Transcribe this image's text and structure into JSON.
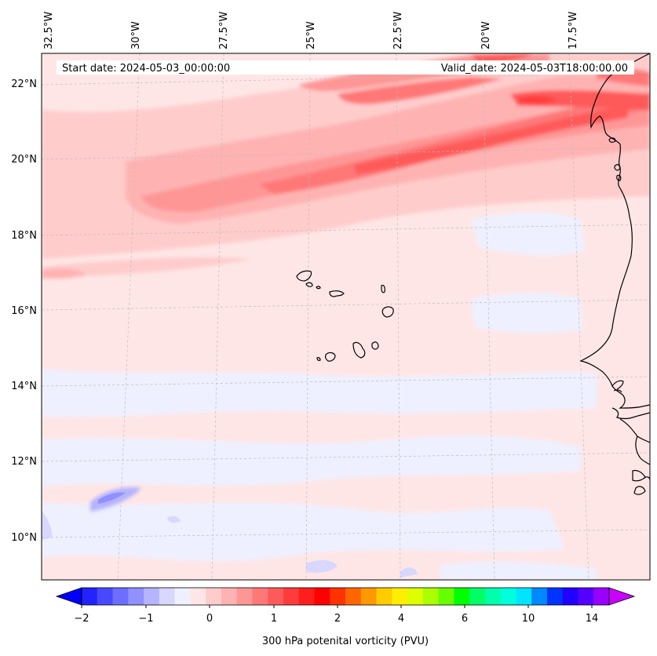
{
  "map": {
    "region": "Eastern North Atlantic - Cape Verde and West African coast",
    "start_label": "Start date: 2024-05-03_00:00:00",
    "valid_label": "Valid_date: 2024-05-03T18:00:00.00",
    "longitude_labels": [
      "32.5°W",
      "30°W",
      "27.5°W",
      "25°W",
      "22.5°W",
      "20°W",
      "17.5°W"
    ],
    "latitude_labels": [
      "22°N",
      "20°N",
      "18°N",
      "16°N",
      "14°N",
      "12°N",
      "10°N"
    ],
    "lat_range": [
      8.8,
      22.8
    ],
    "lon_range": [
      -33.0,
      -15.3
    ]
  },
  "colorbar": {
    "label": "300 hPa potenital vorticity (PVU)",
    "ticks": [
      "−2",
      "−1",
      "0",
      "1",
      "2",
      "4",
      "6",
      "10",
      "14"
    ],
    "colors": [
      "#0000ff",
      "#2323ff",
      "#4848ff",
      "#6d6dff",
      "#9090ff",
      "#b4b4ff",
      "#d8d8ff",
      "#eef0ff",
      "#ffe6e6",
      "#ffcccc",
      "#ffb2b2",
      "#ff9696",
      "#ff7878",
      "#ff5a5a",
      "#ff3c3c",
      "#ff1e1e",
      "#ff0000",
      "#ff3300",
      "#ff6600",
      "#ff9900",
      "#ffcc00",
      "#ffee00",
      "#ddff00",
      "#aaff00",
      "#66ff00",
      "#00ff00",
      "#00ff66",
      "#00ffaa",
      "#00ffdd",
      "#00e5ff",
      "#0088ff",
      "#0033ff",
      "#2200ff",
      "#5500ff",
      "#9900ff",
      "#cc00ff"
    ]
  }
}
